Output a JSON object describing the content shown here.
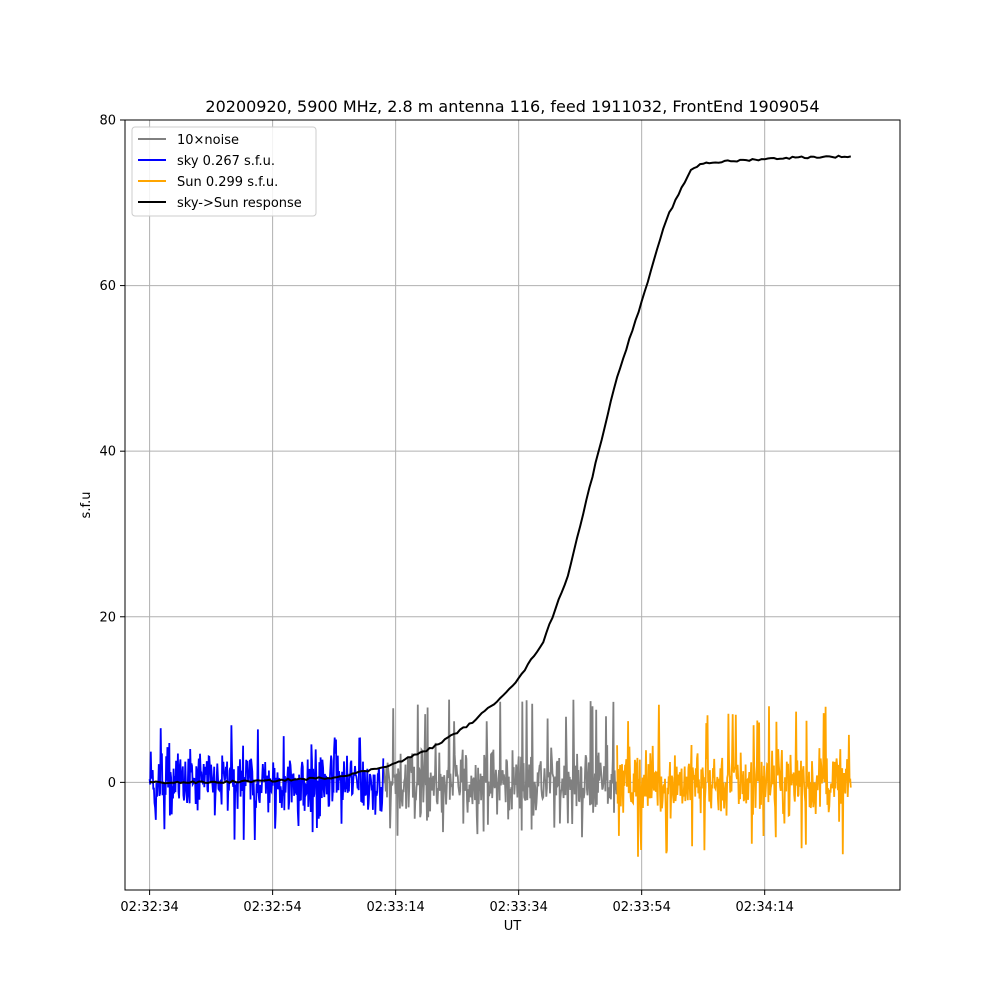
{
  "chart_data": {
    "type": "line",
    "title": "20200920, 5900 MHz, 2.8 m antenna 116, feed 1911032, FrontEnd 1909054",
    "xlabel": "UT",
    "ylabel": "s.f.u",
    "x_unit": "UT time (HH:MM:SS)",
    "xlim": [
      "02:32:30",
      "02:34:36"
    ],
    "ylim": [
      -13,
      80
    ],
    "x_ticks": [
      "02:32:34",
      "02:32:54",
      "02:33:14",
      "02:33:34",
      "02:33:54",
      "02:34:14"
    ],
    "y_ticks": [
      0,
      20,
      40,
      60,
      80
    ],
    "grid": true,
    "legend_position": "top-left",
    "series": [
      {
        "name": "10×noise",
        "color": "#808080",
        "x_range": [
          "02:33:12",
          "02:33:50"
        ],
        "y_range": [
          -7.5,
          10
        ],
        "description_values": "noise fluctuating around 0, amplitude about ±5"
      },
      {
        "name": "sky 0.267 s.f.u.",
        "color": "#0000ff",
        "x_range": [
          "02:32:34",
          "02:33:12"
        ],
        "y_range": [
          -7,
          7
        ]
      },
      {
        "name": "Sun 0.299 s.f.u.",
        "color": "#ffa500",
        "x_range": [
          "02:33:50",
          "02:34:28"
        ],
        "y_range": [
          -9,
          9.5
        ]
      },
      {
        "name": "sky->Sun response",
        "color": "#000000",
        "points": [
          [
            "02:32:34",
            0.0
          ],
          [
            "02:32:44",
            0.0
          ],
          [
            "02:32:54",
            0.2
          ],
          [
            "02:33:04",
            0.6
          ],
          [
            "02:33:10",
            1.5
          ],
          [
            "02:33:14",
            2.3
          ],
          [
            "02:33:20",
            4.2
          ],
          [
            "02:33:26",
            7.0
          ],
          [
            "02:33:30",
            9.5
          ],
          [
            "02:33:34",
            12.5
          ],
          [
            "02:33:38",
            17.0
          ],
          [
            "02:33:42",
            25.0
          ],
          [
            "02:33:46",
            37.0
          ],
          [
            "02:33:50",
            49.0
          ],
          [
            "02:33:54",
            58.0
          ],
          [
            "02:33:58",
            68.0
          ],
          [
            "02:34:02",
            74.0
          ],
          [
            "02:34:04",
            74.8
          ],
          [
            "02:34:08",
            75.0
          ],
          [
            "02:34:14",
            75.3
          ],
          [
            "02:34:20",
            75.5
          ],
          [
            "02:34:28",
            75.6
          ]
        ]
      }
    ]
  }
}
